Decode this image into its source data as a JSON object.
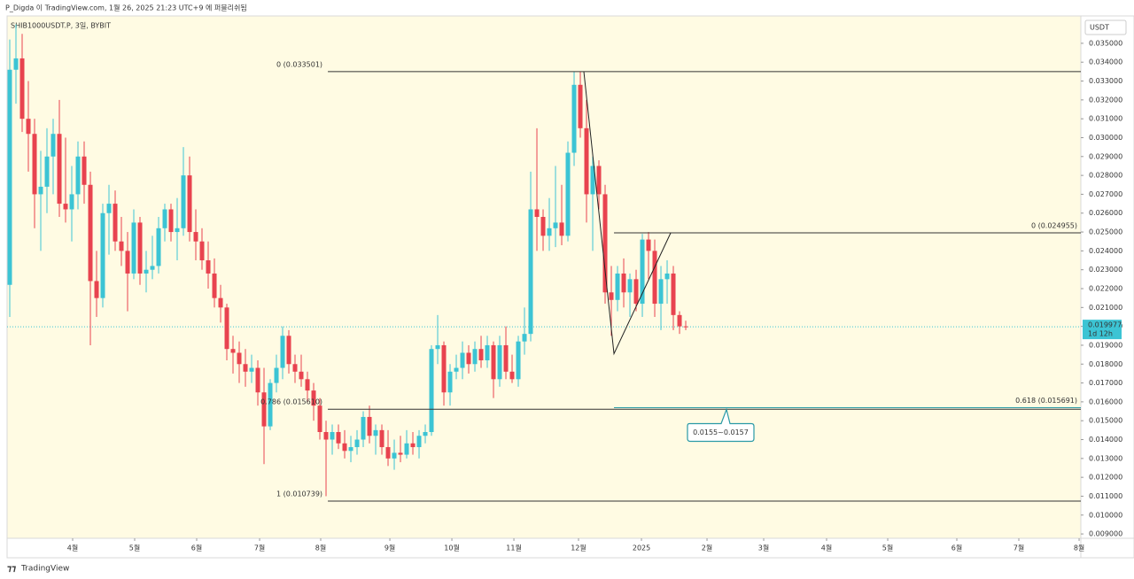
{
  "header": "P_Digda 이 TradingView.com, 1월 26, 2025 21:23 UTC+9 에 퍼블리쉬됨",
  "footer": "TradingView",
  "chart_data": {
    "type": "candlestick",
    "title": "SHIB1000USDT.P, 3일, BYBIT",
    "currency": "USDT",
    "up_color": "#3cc4d4",
    "down_color": "#e8434f",
    "ylim": [
      0.00877,
      0.03645
    ],
    "xlim": [
      -0.43,
      172.71
    ],
    "yticks": [
      {
        "value": 0.009,
        "label": "0.009000"
      },
      {
        "value": 0.01,
        "label": "0.010000"
      },
      {
        "value": 0.011,
        "label": "0.011000"
      },
      {
        "value": 0.012,
        "label": "0.012000"
      },
      {
        "value": 0.013,
        "label": "0.013000"
      },
      {
        "value": 0.014,
        "label": "0.014000"
      },
      {
        "value": 0.015,
        "label": "0.015000"
      },
      {
        "value": 0.016,
        "label": "0.016000"
      },
      {
        "value": 0.017,
        "label": "0.017000"
      },
      {
        "value": 0.018,
        "label": "0.018000"
      },
      {
        "value": 0.019,
        "label": "0.019000"
      },
      {
        "value": 0.02,
        "label": "0.020000"
      },
      {
        "value": 0.021,
        "label": "0.021000"
      },
      {
        "value": 0.022,
        "label": "0.022000"
      },
      {
        "value": 0.023,
        "label": "0.023000"
      },
      {
        "value": 0.024,
        "label": "0.024000"
      },
      {
        "value": 0.025,
        "label": "0.025000"
      },
      {
        "value": 0.026,
        "label": "0.026000"
      },
      {
        "value": 0.027,
        "label": "0.027000"
      },
      {
        "value": 0.028,
        "label": "0.028000"
      },
      {
        "value": 0.029,
        "label": "0.029000"
      },
      {
        "value": 0.03,
        "label": "0.030000"
      },
      {
        "value": 0.031,
        "label": "0.031000"
      },
      {
        "value": 0.032,
        "label": "0.032000"
      },
      {
        "value": 0.033,
        "label": "0.033000"
      },
      {
        "value": 0.034,
        "label": "0.034000"
      },
      {
        "value": 0.035,
        "label": "0.035000"
      }
    ],
    "xticks": [
      {
        "value": 10.14,
        "label": "4월"
      },
      {
        "value": 20.14,
        "label": "5월"
      },
      {
        "value": 30.14,
        "label": "6월"
      },
      {
        "value": 40.29,
        "label": "7월"
      },
      {
        "value": 50.14,
        "label": "8월"
      },
      {
        "value": 61.29,
        "label": "9월"
      },
      {
        "value": 71.29,
        "label": "10월"
      },
      {
        "value": 81.29,
        "label": "11월"
      },
      {
        "value": 91.71,
        "label": "12월"
      },
      {
        "value": 101.86,
        "label": "2025"
      },
      {
        "value": 112.43,
        "label": "2월"
      },
      {
        "value": 121.57,
        "label": "3월"
      },
      {
        "value": 131.71,
        "label": "4월"
      },
      {
        "value": 141.57,
        "label": "5월"
      },
      {
        "value": 152.71,
        "label": "6월"
      },
      {
        "value": 162.71,
        "label": "7월"
      },
      {
        "value": 172.43,
        "label": "8월"
      }
    ],
    "values": [
      [
        0.0222,
        0.0352,
        0.0205,
        0.0336
      ],
      [
        0.0336,
        0.036,
        0.0318,
        0.0342
      ],
      [
        0.0342,
        0.0355,
        0.0303,
        0.031
      ],
      [
        0.031,
        0.033,
        0.0282,
        0.0302
      ],
      [
        0.0302,
        0.031,
        0.0252,
        0.027
      ],
      [
        0.027,
        0.0293,
        0.024,
        0.0274
      ],
      [
        0.0274,
        0.0305,
        0.026,
        0.029
      ],
      [
        0.029,
        0.031,
        0.027,
        0.0302
      ],
      [
        0.0302,
        0.032,
        0.0258,
        0.0265
      ],
      [
        0.0265,
        0.03,
        0.0255,
        0.0262
      ],
      [
        0.0262,
        0.0285,
        0.0245,
        0.027
      ],
      [
        0.027,
        0.0298,
        0.0262,
        0.029
      ],
      [
        0.029,
        0.0298,
        0.0265,
        0.0275
      ],
      [
        0.0275,
        0.0282,
        0.019,
        0.0224
      ],
      [
        0.0224,
        0.024,
        0.0205,
        0.0215
      ],
      [
        0.0215,
        0.0265,
        0.021,
        0.026
      ],
      [
        0.026,
        0.0275,
        0.0238,
        0.0265
      ],
      [
        0.0265,
        0.0272,
        0.024,
        0.0245
      ],
      [
        0.0245,
        0.0258,
        0.0232,
        0.024
      ],
      [
        0.024,
        0.025,
        0.0208,
        0.0228
      ],
      [
        0.0228,
        0.0262,
        0.0225,
        0.0255
      ],
      [
        0.0255,
        0.0258,
        0.0222,
        0.0228
      ],
      [
        0.0228,
        0.024,
        0.0218,
        0.023
      ],
      [
        0.023,
        0.0248,
        0.0225,
        0.0232
      ],
      [
        0.0232,
        0.0258,
        0.0228,
        0.0252
      ],
      [
        0.0252,
        0.0265,
        0.0245,
        0.0262
      ],
      [
        0.0262,
        0.0265,
        0.0245,
        0.025
      ],
      [
        0.025,
        0.0268,
        0.0235,
        0.0252
      ],
      [
        0.0252,
        0.0295,
        0.0248,
        0.028
      ],
      [
        0.028,
        0.029,
        0.0245,
        0.025
      ],
      [
        0.025,
        0.0262,
        0.0235,
        0.0245
      ],
      [
        0.0245,
        0.0252,
        0.023,
        0.0235
      ],
      [
        0.0235,
        0.0245,
        0.022,
        0.0228
      ],
      [
        0.0228,
        0.0236,
        0.021,
        0.0215
      ],
      [
        0.0215,
        0.0222,
        0.0202,
        0.021
      ],
      [
        0.021,
        0.0212,
        0.0182,
        0.0188
      ],
      [
        0.0188,
        0.0195,
        0.0175,
        0.0186
      ],
      [
        0.0186,
        0.0192,
        0.017,
        0.018
      ],
      [
        0.018,
        0.0188,
        0.0168,
        0.0176
      ],
      [
        0.0176,
        0.0185,
        0.017,
        0.0178
      ],
      [
        0.0178,
        0.0182,
        0.0158,
        0.0165
      ],
      [
        0.0165,
        0.0178,
        0.0127,
        0.0147
      ],
      [
        0.0147,
        0.0172,
        0.0145,
        0.017
      ],
      [
        0.017,
        0.0185,
        0.0165,
        0.0178
      ],
      [
        0.0178,
        0.02,
        0.0172,
        0.0195
      ],
      [
        0.0195,
        0.0198,
        0.0175,
        0.018
      ],
      [
        0.018,
        0.0185,
        0.017,
        0.0176
      ],
      [
        0.0176,
        0.0185,
        0.0168,
        0.0172
      ],
      [
        0.0172,
        0.0176,
        0.016,
        0.0166
      ],
      [
        0.0166,
        0.017,
        0.015,
        0.0158
      ],
      [
        0.0158,
        0.0162,
        0.014,
        0.0144
      ],
      [
        0.0144,
        0.015,
        0.011,
        0.014
      ],
      [
        0.014,
        0.0148,
        0.0132,
        0.0144
      ],
      [
        0.0144,
        0.0148,
        0.0135,
        0.0138
      ],
      [
        0.0138,
        0.0145,
        0.013,
        0.0134
      ],
      [
        0.0134,
        0.0142,
        0.0128,
        0.0136
      ],
      [
        0.0136,
        0.0145,
        0.0132,
        0.014
      ],
      [
        0.014,
        0.0155,
        0.0136,
        0.0152
      ],
      [
        0.0152,
        0.0158,
        0.0138,
        0.0142
      ],
      [
        0.0142,
        0.0148,
        0.0132,
        0.0145
      ],
      [
        0.0145,
        0.0148,
        0.0132,
        0.0136
      ],
      [
        0.0136,
        0.0145,
        0.0126,
        0.013
      ],
      [
        0.013,
        0.014,
        0.0124,
        0.0133
      ],
      [
        0.0133,
        0.0142,
        0.0128,
        0.0132
      ],
      [
        0.0132,
        0.0145,
        0.013,
        0.0138
      ],
      [
        0.0138,
        0.0144,
        0.0132,
        0.0136
      ],
      [
        0.0136,
        0.0145,
        0.013,
        0.0142
      ],
      [
        0.0142,
        0.0148,
        0.0138,
        0.0144
      ],
      [
        0.0144,
        0.019,
        0.0142,
        0.0188
      ],
      [
        0.0188,
        0.0206,
        0.018,
        0.019
      ],
      [
        0.019,
        0.0192,
        0.0158,
        0.0165
      ],
      [
        0.0165,
        0.018,
        0.0158,
        0.0176
      ],
      [
        0.0176,
        0.0185,
        0.0172,
        0.0178
      ],
      [
        0.0178,
        0.0192,
        0.0172,
        0.0186
      ],
      [
        0.0186,
        0.019,
        0.0175,
        0.018
      ],
      [
        0.018,
        0.0192,
        0.0176,
        0.0188
      ],
      [
        0.0188,
        0.0195,
        0.0178,
        0.0182
      ],
      [
        0.0182,
        0.0195,
        0.0178,
        0.019
      ],
      [
        0.019,
        0.0192,
        0.0162,
        0.0172
      ],
      [
        0.0172,
        0.0195,
        0.0168,
        0.019
      ],
      [
        0.019,
        0.02,
        0.0172,
        0.0176
      ],
      [
        0.0176,
        0.0185,
        0.017,
        0.0172
      ],
      [
        0.0172,
        0.0195,
        0.0168,
        0.0192
      ],
      [
        0.0192,
        0.021,
        0.0185,
        0.0196
      ],
      [
        0.0196,
        0.0282,
        0.0192,
        0.0262
      ],
      [
        0.0262,
        0.0305,
        0.024,
        0.0258
      ],
      [
        0.0258,
        0.0262,
        0.024,
        0.0248
      ],
      [
        0.0248,
        0.0268,
        0.024,
        0.0252
      ],
      [
        0.0252,
        0.0285,
        0.0242,
        0.0255
      ],
      [
        0.0255,
        0.0275,
        0.0243,
        0.0248
      ],
      [
        0.0248,
        0.0298,
        0.0245,
        0.0292
      ],
      [
        0.0292,
        0.0335,
        0.0285,
        0.0328
      ],
      [
        0.0328,
        0.0335,
        0.03,
        0.0305
      ],
      [
        0.0305,
        0.032,
        0.0255,
        0.027
      ],
      [
        0.027,
        0.029,
        0.024,
        0.0285
      ],
      [
        0.0285,
        0.0288,
        0.0262,
        0.027
      ],
      [
        0.027,
        0.0275,
        0.0212,
        0.0218
      ],
      [
        0.0218,
        0.0232,
        0.0195,
        0.0214
      ],
      [
        0.0214,
        0.0232,
        0.0208,
        0.0228
      ],
      [
        0.0228,
        0.0236,
        0.021,
        0.0218
      ],
      [
        0.0218,
        0.0228,
        0.0205,
        0.0225
      ],
      [
        0.0225,
        0.023,
        0.0208,
        0.0212
      ],
      [
        0.0212,
        0.0249,
        0.0205,
        0.0246
      ],
      [
        0.0246,
        0.025,
        0.0225,
        0.024
      ],
      [
        0.024,
        0.0246,
        0.0205,
        0.0212
      ],
      [
        0.0212,
        0.0232,
        0.0198,
        0.0225
      ],
      [
        0.0225,
        0.0235,
        0.0212,
        0.0228
      ],
      [
        0.0228,
        0.0232,
        0.0198,
        0.0206
      ],
      [
        0.0206,
        0.0208,
        0.0196,
        0.02
      ],
      [
        0.02,
        0.0203,
        0.0198,
        0.019977
      ]
    ],
    "last_price": 0.019977,
    "countdown": "1d 12h",
    "fib_levels": [
      {
        "label": "0 (0.033501)",
        "value": 0.033501,
        "x_start": 51.29,
        "align": "left",
        "color": "#333333"
      },
      {
        "label": "0.786 (0.015610)",
        "value": 0.01561,
        "x_start": 51.29,
        "align": "left",
        "color": "#333333"
      },
      {
        "label": "1 (0.010739)",
        "value": 0.010739,
        "x_start": 51.29,
        "align": "left",
        "color": "#333333"
      },
      {
        "label": "0 (0.024955)",
        "value": 0.024955,
        "x_start": 97.43,
        "align": "right",
        "color": "#333333"
      },
      {
        "label": "0.618 (0.015691)",
        "value": 0.015691,
        "x_start": 97.43,
        "align": "right",
        "color": "#2a9aa6"
      }
    ],
    "zigzag": {
      "x": [
        92.57,
        97.43,
        106.57
      ],
      "y": [
        0.0335,
        0.01855,
        0.02495
      ]
    },
    "callout": "0.0155~0.0157"
  }
}
